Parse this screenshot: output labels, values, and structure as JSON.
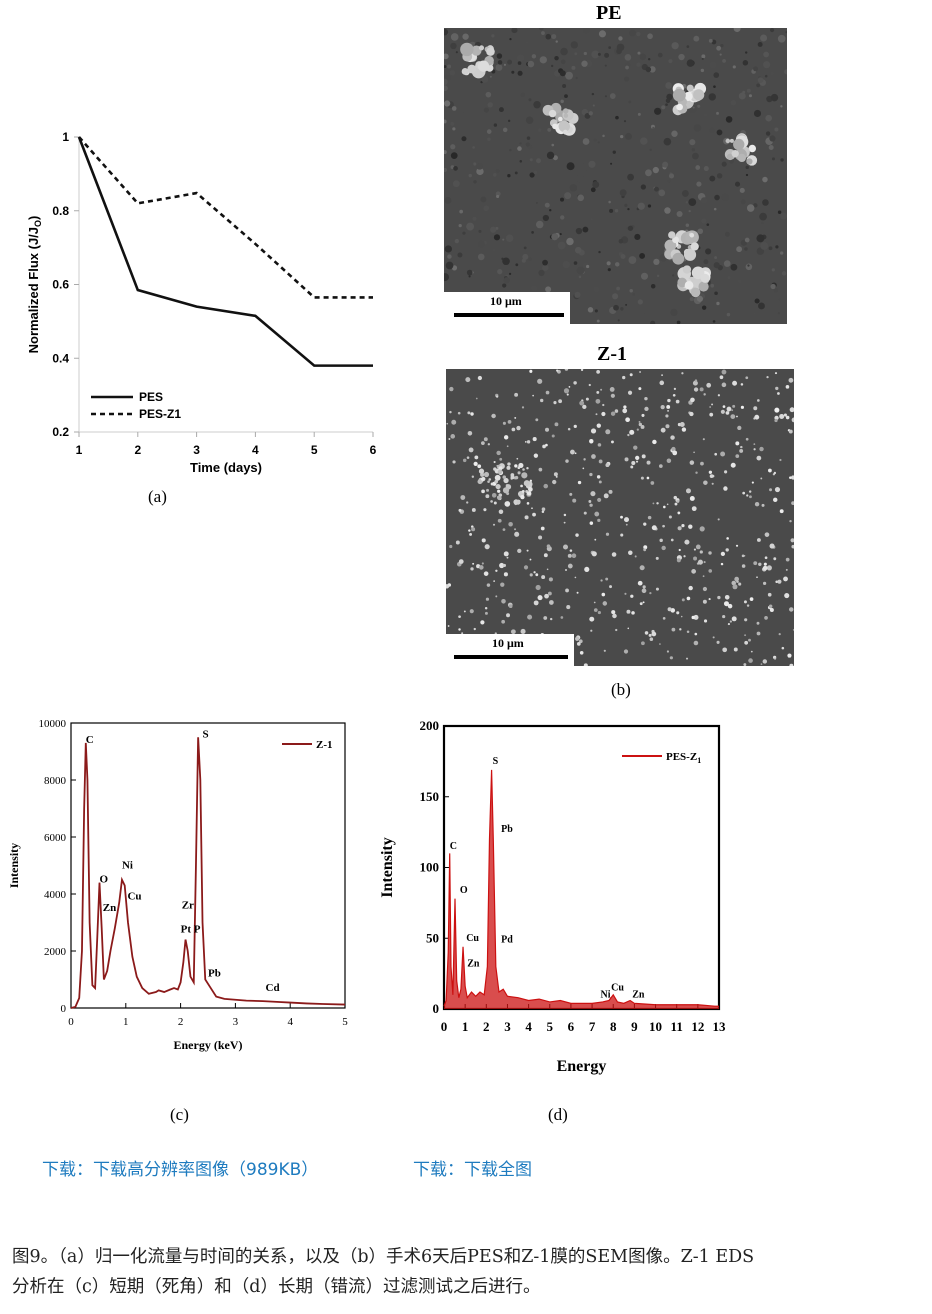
{
  "panel_a": {
    "label": "(a)",
    "chart_data": {
      "type": "line",
      "xlabel": "Time (days)",
      "ylabel": "Normalized Flux (J/J",
      "ylabel_sub": "O",
      "ylabel_close": ")",
      "x": [
        1,
        2,
        3,
        4,
        5,
        6
      ],
      "xlim": [
        1,
        6
      ],
      "ylim": [
        0.2,
        1.0
      ],
      "x_ticks": [
        "1",
        "2",
        "3",
        "4",
        "5",
        "6"
      ],
      "y_ticks": [
        "0.2",
        "0.4",
        "0.6",
        "0.8",
        "1"
      ],
      "legend_position": "bottom-left",
      "series": [
        {
          "name": "PES",
          "style": "solid",
          "values": [
            1.0,
            0.585,
            0.54,
            0.515,
            0.38,
            0.38
          ]
        },
        {
          "name": "PES-Z1",
          "style": "dashed",
          "values": [
            1.0,
            0.82,
            0.848,
            0.71,
            0.565,
            0.565
          ]
        }
      ]
    }
  },
  "panel_b": {
    "label": "(b)",
    "images": [
      {
        "title": "PE",
        "scale_label": "10 μm"
      },
      {
        "title": "Z-1",
        "scale_label": "10 μm"
      }
    ]
  },
  "panel_c": {
    "label": "(c)",
    "chart_data": {
      "type": "line",
      "xlabel": "Energy (keV)",
      "ylabel": "Intensity",
      "xlim": [
        0,
        5
      ],
      "ylim": [
        0,
        10000
      ],
      "x_ticks": [
        "0",
        "1",
        "2",
        "3",
        "4",
        "5"
      ],
      "y_ticks": [
        "0",
        "2000",
        "4000",
        "6000",
        "8000",
        "10000"
      ],
      "legend_position": "top-right",
      "series": [
        {
          "name": "Z-1",
          "color": "#8b1a1a",
          "points": [
            [
              0,
              0
            ],
            [
              0.08,
              40
            ],
            [
              0.15,
              350
            ],
            [
              0.2,
              2000
            ],
            [
              0.24,
              7000
            ],
            [
              0.27,
              9300
            ],
            [
              0.3,
              8000
            ],
            [
              0.34,
              3000
            ],
            [
              0.39,
              800
            ],
            [
              0.44,
              700
            ],
            [
              0.48,
              2500
            ],
            [
              0.52,
              4400
            ],
            [
              0.56,
              2800
            ],
            [
              0.6,
              1000
            ],
            [
              0.66,
              1300
            ],
            [
              0.72,
              2000
            ],
            [
              0.8,
              2800
            ],
            [
              0.88,
              3700
            ],
            [
              0.93,
              4500
            ],
            [
              0.98,
              4300
            ],
            [
              1.04,
              3000
            ],
            [
              1.12,
              1800
            ],
            [
              1.2,
              1100
            ],
            [
              1.3,
              700
            ],
            [
              1.42,
              500
            ],
            [
              1.55,
              560
            ],
            [
              1.6,
              620
            ],
            [
              1.7,
              560
            ],
            [
              1.8,
              640
            ],
            [
              1.88,
              700
            ],
            [
              1.95,
              650
            ],
            [
              2.0,
              900
            ],
            [
              2.05,
              1600
            ],
            [
              2.09,
              2400
            ],
            [
              2.13,
              2000
            ],
            [
              2.18,
              1100
            ],
            [
              2.24,
              900
            ],
            [
              2.28,
              5000
            ],
            [
              2.32,
              9500
            ],
            [
              2.36,
              8000
            ],
            [
              2.4,
              3000
            ],
            [
              2.45,
              1000
            ],
            [
              2.55,
              700
            ],
            [
              2.65,
              400
            ],
            [
              2.8,
              320
            ],
            [
              3.0,
              290
            ],
            [
              3.2,
              260
            ],
            [
              3.5,
              240
            ],
            [
              3.8,
              210
            ],
            [
              4.0,
              190
            ],
            [
              4.3,
              160
            ],
            [
              4.6,
              140
            ],
            [
              5.0,
              120
            ]
          ]
        }
      ],
      "peak_labels": [
        {
          "text": "C",
          "x": 0.27,
          "y": 9300
        },
        {
          "text": "O",
          "x": 0.52,
          "y": 4400
        },
        {
          "text": "Zn",
          "x": 0.58,
          "y": 3400
        },
        {
          "text": "Ni",
          "x": 0.93,
          "y": 4900
        },
        {
          "text": "Cu",
          "x": 1.03,
          "y": 3800
        },
        {
          "text": "Zr",
          "x": 2.02,
          "y": 3500
        },
        {
          "text": "Pt P",
          "x": 2.0,
          "y": 2650
        },
        {
          "text": "S",
          "x": 2.4,
          "y": 9500
        },
        {
          "text": "Pb",
          "x": 2.5,
          "y": 1100
        },
        {
          "text": "Cd",
          "x": 3.55,
          "y": 600
        }
      ]
    }
  },
  "panel_d": {
    "label": "(d)",
    "chart_data": {
      "type": "line",
      "xlabel": "Energy",
      "ylabel": "Intensity",
      "xlim": [
        0,
        13
      ],
      "ylim": [
        0,
        200
      ],
      "x_ticks": [
        "0",
        "1",
        "2",
        "3",
        "4",
        "5",
        "6",
        "7",
        "8",
        "9",
        "10",
        "11",
        "12",
        "13"
      ],
      "y_ticks": [
        "0",
        "50",
        "100",
        "150",
        "200"
      ],
      "legend_position": "top-right",
      "series": [
        {
          "name": "PES-Z",
          "name_sub": "1",
          "color": "#cc1111",
          "points": [
            [
              0,
              2
            ],
            [
              0.1,
              6
            ],
            [
              0.2,
              40
            ],
            [
              0.27,
              110
            ],
            [
              0.33,
              30
            ],
            [
              0.42,
              10
            ],
            [
              0.52,
              78
            ],
            [
              0.6,
              20
            ],
            [
              0.7,
              8
            ],
            [
              0.8,
              14
            ],
            [
              0.9,
              44
            ],
            [
              1.0,
              16
            ],
            [
              1.1,
              8
            ],
            [
              1.3,
              12
            ],
            [
              1.5,
              9
            ],
            [
              1.7,
              12
            ],
            [
              1.9,
              10
            ],
            [
              2.05,
              30
            ],
            [
              2.15,
              120
            ],
            [
              2.25,
              169
            ],
            [
              2.33,
              120
            ],
            [
              2.45,
              30
            ],
            [
              2.6,
              12
            ],
            [
              2.8,
              14
            ],
            [
              3.0,
              9
            ],
            [
              3.5,
              8
            ],
            [
              4.0,
              6
            ],
            [
              4.5,
              7
            ],
            [
              5.0,
              5
            ],
            [
              5.5,
              6
            ],
            [
              6.0,
              4
            ],
            [
              6.5,
              4
            ],
            [
              7.0,
              4
            ],
            [
              7.5,
              5
            ],
            [
              7.8,
              6
            ],
            [
              8.0,
              10
            ],
            [
              8.2,
              5
            ],
            [
              8.5,
              4
            ],
            [
              8.8,
              6
            ],
            [
              9.0,
              4
            ],
            [
              10,
              3
            ],
            [
              11,
              3
            ],
            [
              12,
              3
            ],
            [
              12.8,
              2
            ],
            [
              13,
              2
            ]
          ]
        }
      ],
      "peak_labels": [
        {
          "text": "C",
          "x": 0.27,
          "y": 113
        },
        {
          "text": "O",
          "x": 0.75,
          "y": 82
        },
        {
          "text": "Cu",
          "x": 1.05,
          "y": 48
        },
        {
          "text": "Zn",
          "x": 1.1,
          "y": 30
        },
        {
          "text": "S",
          "x": 2.3,
          "y": 173
        },
        {
          "text": "Pb",
          "x": 2.7,
          "y": 125
        },
        {
          "text": "Pd",
          "x": 2.7,
          "y": 47
        },
        {
          "text": "Cu",
          "x": 7.9,
          "y": 13
        },
        {
          "text": "Ni",
          "x": 7.4,
          "y": 8
        },
        {
          "text": "Zn",
          "x": 8.9,
          "y": 8
        }
      ]
    }
  },
  "links": {
    "download_hires": "下载：下载高分辨率图像（989KB）",
    "download_full": "下载：下载全图"
  },
  "caption": {
    "line1": "图9。（a）归一化流量与时间的关系，以及（b）手术6天后PES和Z-1膜的SEM图像。Z-1 EDS",
    "line2": "分析在（c）短期（死角）和（d）长期（错流）过滤测试之后进行。"
  }
}
